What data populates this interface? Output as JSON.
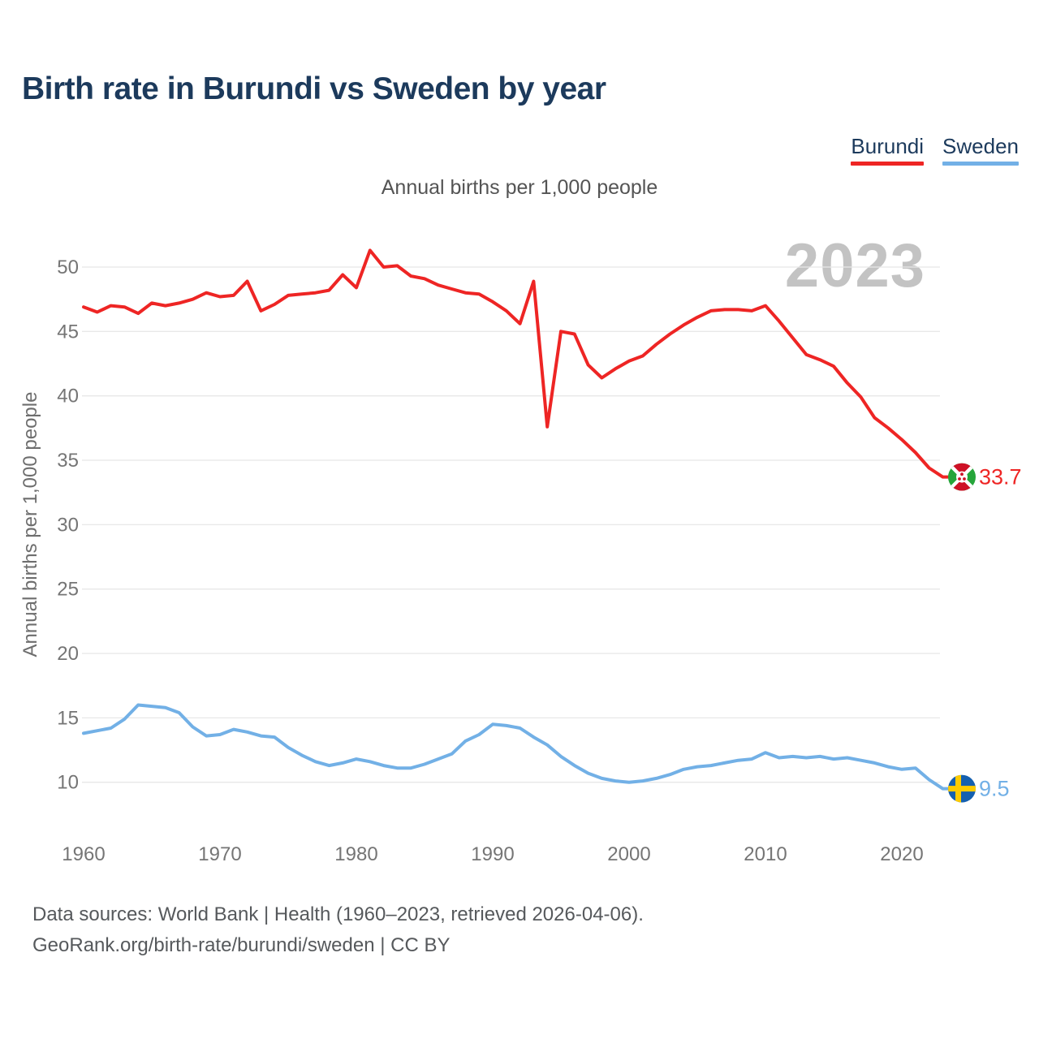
{
  "title": "Birth rate in Burundi vs Sweden by year",
  "subtitle": "Annual births per 1,000 people",
  "watermark": "2023",
  "footer": {
    "line1": "Data sources: World Bank | Health (1960–2023, retrieved 2026-04-06).",
    "line2": "GeoRank.org/birth-rate/burundi/sweden | CC BY"
  },
  "colors": {
    "burundi_line": "#ee2524",
    "sweden_line": "#72b0e6",
    "title_navy": "#1c3a5c",
    "grid": "#e8e8e8",
    "tick_gray": "#757575",
    "watermark_gray": "#c3c3c3",
    "burundi_flag_red": "#ce1126",
    "burundi_flag_green": "#26a53a",
    "sweden_flag_blue": "#1560b0",
    "sweden_flag_yellow": "#fecb00"
  },
  "chart_data": {
    "type": "line",
    "title": "Birth rate in Burundi vs Sweden by year",
    "xlabel": "",
    "ylabel": "Annual births per 1,000 people",
    "ylim": [
      10,
      50
    ],
    "xlim": [
      1960,
      2023
    ],
    "grid": "horizontal-only",
    "legend_position": "top-right",
    "yticks": [
      10,
      15,
      20,
      25,
      30,
      35,
      40,
      45,
      50
    ],
    "xticks": [
      1960,
      1970,
      1980,
      1990,
      2000,
      2010,
      2020
    ],
    "x": [
      1960,
      1961,
      1962,
      1963,
      1964,
      1965,
      1966,
      1967,
      1968,
      1969,
      1970,
      1971,
      1972,
      1973,
      1974,
      1975,
      1976,
      1977,
      1978,
      1979,
      1980,
      1981,
      1982,
      1983,
      1984,
      1985,
      1986,
      1987,
      1988,
      1989,
      1990,
      1991,
      1992,
      1993,
      1994,
      1995,
      1996,
      1997,
      1998,
      1999,
      2000,
      2001,
      2002,
      2003,
      2004,
      2005,
      2006,
      2007,
      2008,
      2009,
      2010,
      2011,
      2012,
      2013,
      2014,
      2015,
      2016,
      2017,
      2018,
      2019,
      2020,
      2021,
      2022,
      2023
    ],
    "series": [
      {
        "name": "Burundi",
        "color": "#ee2524",
        "end_label": "33.7",
        "end_value": 33.7,
        "values": [
          46.9,
          46.5,
          47.0,
          46.9,
          46.4,
          47.2,
          47.0,
          47.2,
          47.5,
          48.0,
          47.7,
          47.8,
          48.9,
          46.6,
          47.1,
          47.8,
          47.9,
          48.0,
          48.2,
          49.4,
          48.4,
          51.3,
          50.0,
          50.1,
          49.3,
          49.1,
          48.6,
          48.3,
          48.0,
          47.9,
          47.3,
          46.6,
          45.6,
          48.9,
          37.6,
          45.0,
          44.8,
          42.4,
          41.4,
          42.1,
          42.7,
          43.1,
          44.0,
          44.8,
          45.5,
          46.1,
          46.6,
          46.7,
          46.7,
          46.6,
          47.0,
          45.8,
          44.5,
          43.2,
          42.8,
          42.3,
          41.0,
          39.9,
          38.3,
          37.5,
          36.6,
          35.6,
          34.4,
          33.7
        ]
      },
      {
        "name": "Sweden",
        "color": "#72b0e6",
        "end_label": "9.5",
        "end_value": 9.5,
        "values": [
          13.8,
          14.0,
          14.2,
          14.9,
          16.0,
          15.9,
          15.8,
          15.4,
          14.3,
          13.6,
          13.7,
          14.1,
          13.9,
          13.6,
          13.5,
          12.7,
          12.1,
          11.6,
          11.3,
          11.5,
          11.8,
          11.6,
          11.3,
          11.1,
          11.1,
          11.4,
          11.8,
          12.2,
          13.2,
          13.7,
          14.5,
          14.4,
          14.2,
          13.5,
          12.9,
          12.0,
          11.3,
          10.7,
          10.3,
          10.1,
          10.0,
          10.1,
          10.3,
          10.6,
          11.0,
          11.2,
          11.3,
          11.5,
          11.7,
          11.8,
          12.3,
          11.9,
          12.0,
          11.9,
          12.0,
          11.8,
          11.9,
          11.7,
          11.5,
          11.2,
          11.0,
          11.1,
          10.2,
          9.5
        ]
      }
    ]
  }
}
